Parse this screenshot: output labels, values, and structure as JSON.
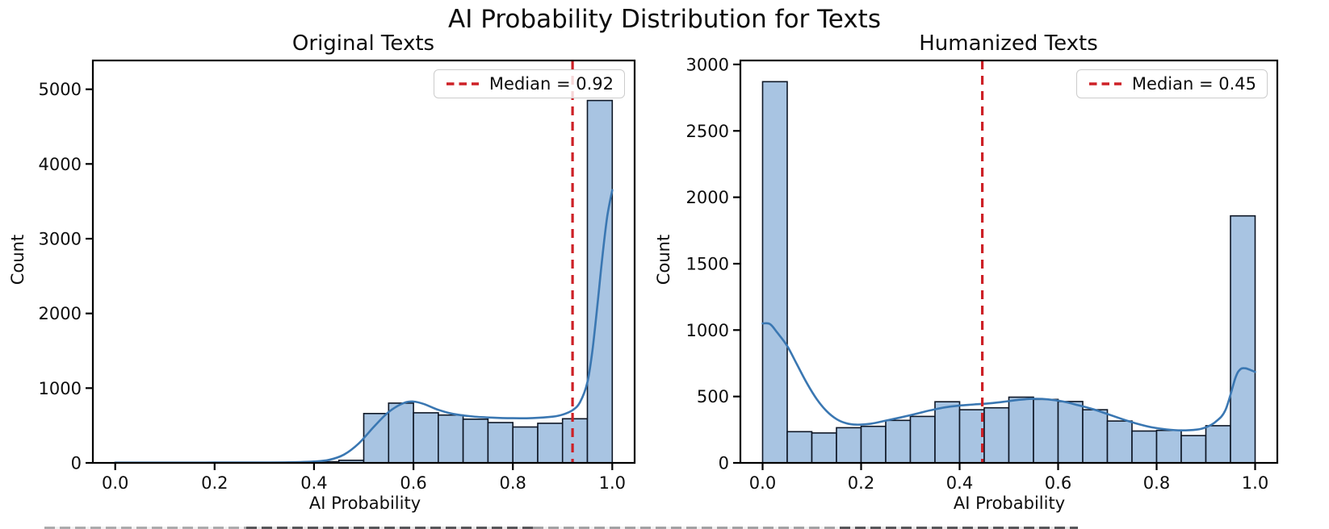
{
  "figure": {
    "title": "AI Probability Distribution for Texts"
  },
  "colors": {
    "bar_fill": "#a8c4e2",
    "bar_edge": "#0e1726",
    "kde_line": "#3a77b2",
    "median_line": "#cd2026",
    "axis": "#000000",
    "tick_text": "#0d0d0d",
    "legend_border": "#cccccc"
  },
  "chart_data": [
    {
      "type": "bar",
      "subtype": "histogram-with-kde",
      "title": "Original Texts",
      "xlabel": "AI Probability",
      "ylabel": "Count",
      "legend": "Median = 0.92",
      "legend_position": "upper right",
      "median": 0.92,
      "median_x": 0.92,
      "bin_start": 0.0,
      "bin_width": 0.05,
      "counts": [
        8,
        8,
        8,
        8,
        8,
        8,
        8,
        8,
        15,
        35,
        660,
        800,
        670,
        640,
        585,
        540,
        480,
        530,
        590,
        4850
      ],
      "kde": [
        [
          0,
          3
        ],
        [
          0.05,
          3
        ],
        [
          0.1,
          3
        ],
        [
          0.15,
          3
        ],
        [
          0.2,
          4
        ],
        [
          0.25,
          4
        ],
        [
          0.3,
          5
        ],
        [
          0.35,
          8
        ],
        [
          0.4,
          18
        ],
        [
          0.43,
          40
        ],
        [
          0.46,
          110
        ],
        [
          0.49,
          260
        ],
        [
          0.52,
          480
        ],
        [
          0.55,
          680
        ],
        [
          0.58,
          800
        ],
        [
          0.6,
          820
        ],
        [
          0.62,
          790
        ],
        [
          0.65,
          710
        ],
        [
          0.68,
          655
        ],
        [
          0.72,
          620
        ],
        [
          0.76,
          605
        ],
        [
          0.8,
          598
        ],
        [
          0.84,
          600
        ],
        [
          0.88,
          618
        ],
        [
          0.9,
          645
        ],
        [
          0.92,
          705
        ],
        [
          0.935,
          810
        ],
        [
          0.95,
          1080
        ],
        [
          0.96,
          1500
        ],
        [
          0.97,
          2100
        ],
        [
          0.98,
          2750
        ],
        [
          0.99,
          3300
        ],
        [
          1.0,
          3650
        ]
      ],
      "xticks": [
        0.0,
        0.2,
        0.4,
        0.6,
        0.8,
        1.0
      ],
      "yticks": [
        0,
        1000,
        2000,
        3000,
        4000,
        5000
      ],
      "xlim": [
        -0.045,
        1.045
      ],
      "ylim": [
        0,
        5385
      ],
      "grid": false
    },
    {
      "type": "bar",
      "subtype": "histogram-with-kde",
      "title": "Humanized Texts",
      "xlabel": "AI Probability",
      "ylabel": "Count",
      "legend": "Median = 0.45",
      "legend_position": "upper right",
      "median": 0.45,
      "median_x": 0.446,
      "bin_start": 0.0,
      "bin_width": 0.05,
      "counts": [
        2870,
        235,
        225,
        265,
        275,
        320,
        350,
        460,
        400,
        415,
        495,
        478,
        462,
        400,
        315,
        240,
        245,
        205,
        280,
        1860
      ],
      "kde": [
        [
          0,
          1050
        ],
        [
          0.015,
          1045
        ],
        [
          0.03,
          980
        ],
        [
          0.05,
          880
        ],
        [
          0.07,
          740
        ],
        [
          0.09,
          600
        ],
        [
          0.11,
          480
        ],
        [
          0.13,
          390
        ],
        [
          0.15,
          330
        ],
        [
          0.17,
          298
        ],
        [
          0.19,
          288
        ],
        [
          0.22,
          295
        ],
        [
          0.25,
          318
        ],
        [
          0.28,
          342
        ],
        [
          0.31,
          368
        ],
        [
          0.34,
          395
        ],
        [
          0.37,
          418
        ],
        [
          0.4,
          432
        ],
        [
          0.43,
          440
        ],
        [
          0.46,
          448
        ],
        [
          0.49,
          460
        ],
        [
          0.52,
          475
        ],
        [
          0.55,
          482
        ],
        [
          0.58,
          478
        ],
        [
          0.61,
          462
        ],
        [
          0.64,
          435
        ],
        [
          0.67,
          405
        ],
        [
          0.7,
          368
        ],
        [
          0.73,
          330
        ],
        [
          0.76,
          295
        ],
        [
          0.79,
          268
        ],
        [
          0.82,
          252
        ],
        [
          0.85,
          245
        ],
        [
          0.88,
          250
        ],
        [
          0.9,
          268
        ],
        [
          0.92,
          310
        ],
        [
          0.94,
          400
        ],
        [
          0.96,
          640
        ],
        [
          0.97,
          705
        ],
        [
          0.98,
          712
        ],
        [
          0.99,
          700
        ],
        [
          1.0,
          685
        ]
      ],
      "xticks": [
        0.0,
        0.2,
        0.4,
        0.6,
        0.8,
        1.0
      ],
      "yticks": [
        0,
        500,
        1000,
        1500,
        2000,
        2500,
        3000
      ],
      "xlim": [
        -0.045,
        1.045
      ],
      "ylim": [
        0,
        3030
      ],
      "grid": false
    }
  ]
}
